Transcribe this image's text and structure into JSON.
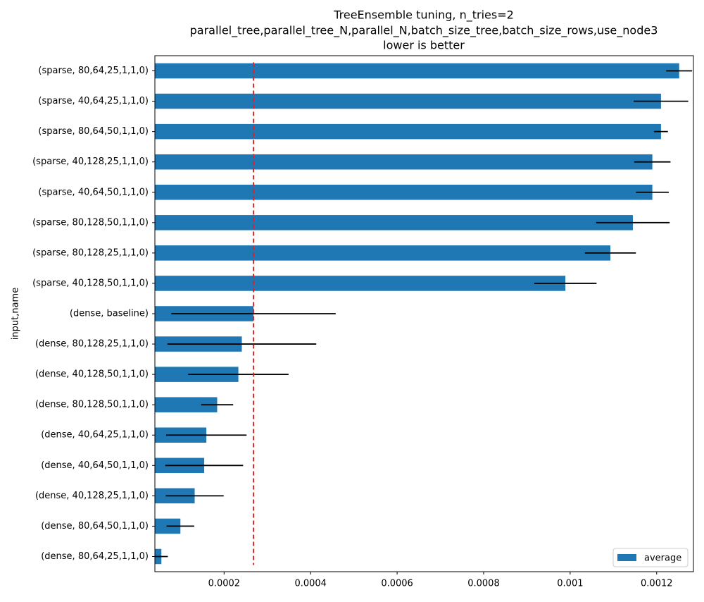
{
  "chart_data": {
    "type": "barh",
    "title": [
      "TreeEnsemble tuning, n_tries=2",
      "parallel_tree,parallel_tree_N,parallel_N,batch_size_tree,batch_size_rows,use_node3",
      "lower is better"
    ],
    "y_label": "input,name",
    "categories": [
      "(sparse, 80,64,25,1,1,0)",
      "(sparse, 40,64,25,1,1,0)",
      "(sparse, 80,64,50,1,1,0)",
      "(sparse, 40,128,25,1,1,0)",
      "(sparse, 40,64,50,1,1,0)",
      "(sparse, 80,128,50,1,1,0)",
      "(sparse, 80,128,25,1,1,0)",
      "(sparse, 40,128,50,1,1,0)",
      "(dense, baseline)",
      "(dense, 80,128,25,1,1,0)",
      "(dense, 40,128,50,1,1,0)",
      "(dense, 80,128,50,1,1,0)",
      "(dense, 40,64,25,1,1,0)",
      "(dense, 40,64,50,1,1,0)",
      "(dense, 40,128,25,1,1,0)",
      "(dense, 80,64,50,1,1,0)",
      "(dense, 80,64,25,1,1,0)"
    ],
    "series": [
      {
        "name": "average",
        "color": "#1f77b4",
        "values": [
          0.001252,
          0.00121,
          0.00121,
          0.00119,
          0.00119,
          0.001145,
          0.001093,
          0.000989,
          0.000268,
          0.000241,
          0.000233,
          0.000184,
          0.000159,
          0.000154,
          0.000132,
          9.9e-05,
          5.5e-05
        ],
        "errors": [
          3e-05,
          6.3e-05,
          1.6e-05,
          4.2e-05,
          3.8e-05,
          8.5e-05,
          5.9e-05,
          7.2e-05,
          0.00019,
          0.000172,
          0.000116,
          3.7e-05,
          9.3e-05,
          9e-05,
          6.7e-05,
          3.2e-05,
          1.5e-05
        ]
      }
    ],
    "reference_line": {
      "value": 0.000268,
      "color": "#d62728"
    },
    "xlim": [
      4e-05,
      0.001285
    ],
    "xticks": [
      0.0002,
      0.0004,
      0.0006,
      0.0008,
      0.001,
      0.0012
    ],
    "legend": "lower right"
  }
}
